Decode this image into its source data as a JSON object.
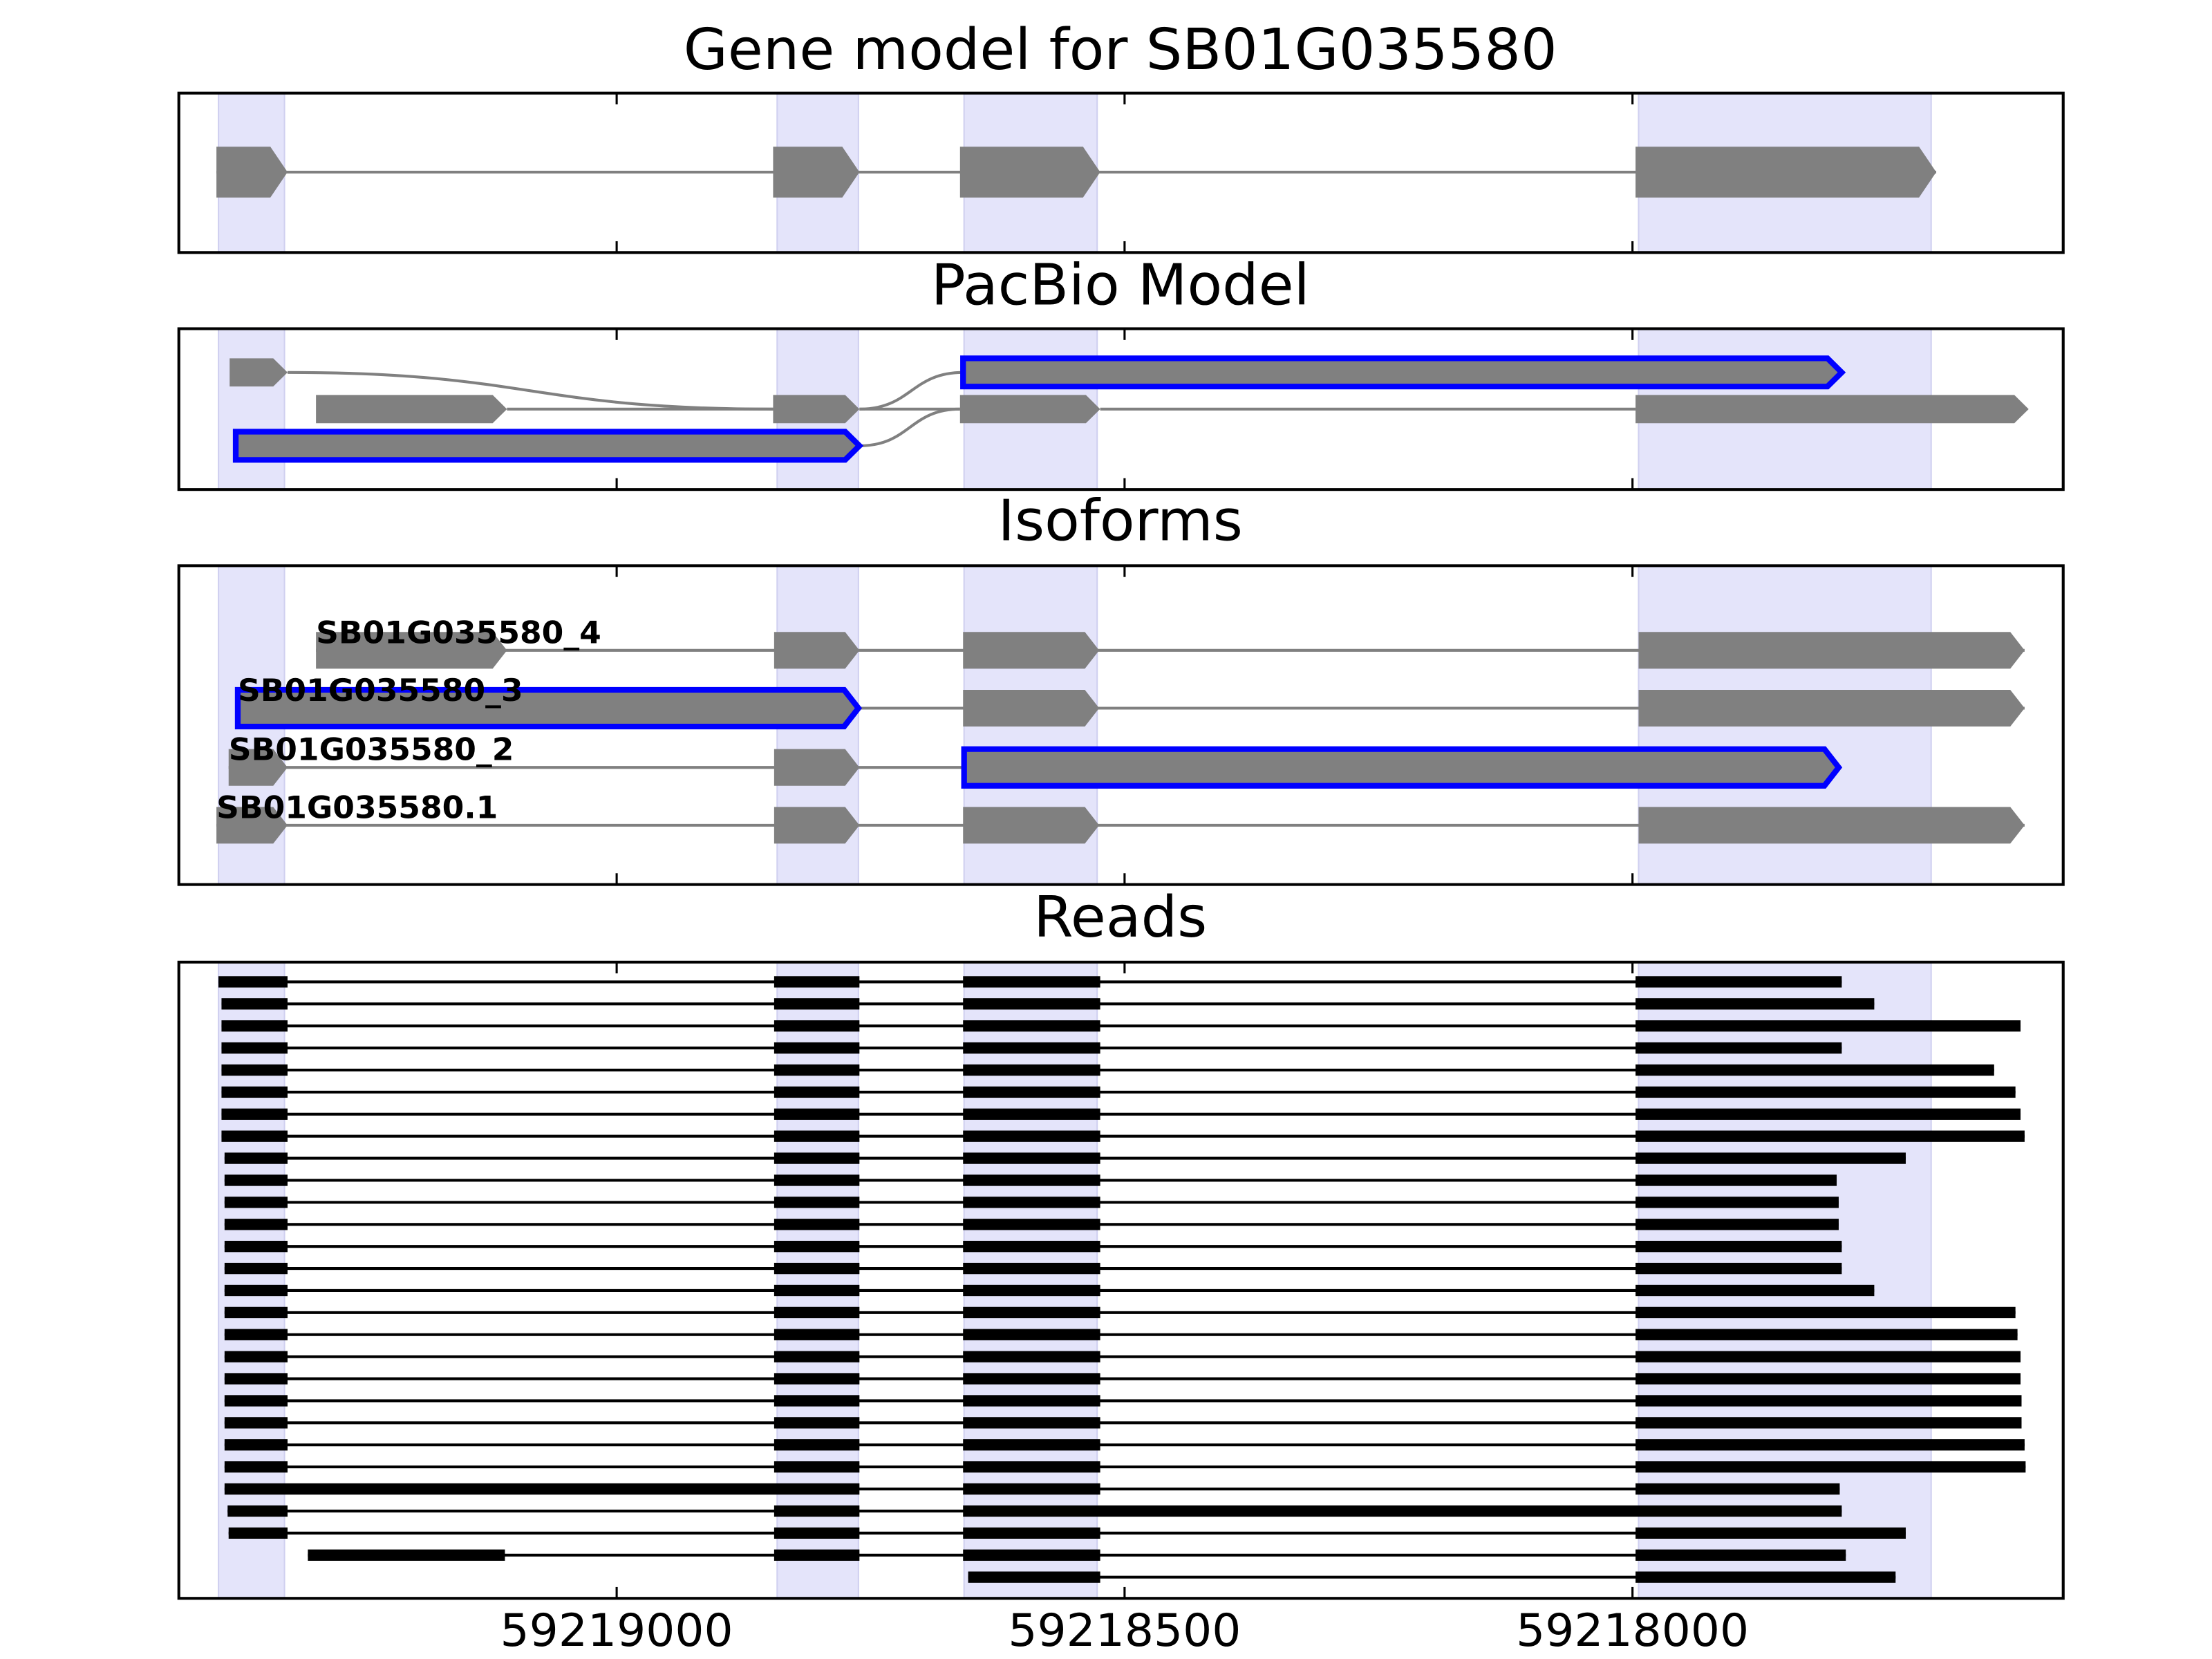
{
  "chart_data": {
    "type": "gene_model",
    "xlim": [
      59219431,
      59217576
    ],
    "xticks": [
      59219000,
      59218500,
      59218000
    ],
    "colors": {
      "exon": "#808080",
      "highlight": "#0000ff",
      "read": "#000000",
      "shade": "#e4e4fa",
      "intron": "#808080"
    },
    "shaded": [
      [
        59219392,
        59219327
      ],
      [
        59218842,
        59218762
      ],
      [
        59218658,
        59218527
      ],
      [
        59217994,
        59217706
      ]
    ],
    "panels": [
      {
        "title": "Gene model for SB01G035580",
        "kind": "gene",
        "exons": [
          [
            59219394,
            59219324
          ],
          [
            59218846,
            59218761
          ],
          [
            59218662,
            59218524
          ],
          [
            59217997,
            59217701
          ]
        ]
      },
      {
        "title": "PacBio Model",
        "kind": "graph",
        "nodes": [
          {
            "row": 0,
            "exon": [
              59219381,
              59219324
            ]
          },
          {
            "row": 0,
            "exon": [
              59218659,
              59217794
            ],
            "highlight": true
          },
          {
            "row": 1,
            "exon": [
              59219296,
              59219108
            ]
          },
          {
            "row": 1,
            "exon": [
              59218846,
              59218761
            ]
          },
          {
            "row": 1,
            "exon": [
              59218662,
              59218524
            ]
          },
          {
            "row": 1,
            "exon": [
              59217997,
              59217610
            ]
          },
          {
            "row": 2,
            "exon": [
              59219375,
              59218761
            ],
            "highlight": true
          }
        ],
        "edges": [
          [
            0,
            3
          ],
          [
            2,
            3
          ],
          [
            3,
            1
          ],
          [
            3,
            4
          ],
          [
            6,
            4
          ],
          [
            4,
            5
          ]
        ]
      },
      {
        "title": "Isoforms",
        "kind": "isoforms",
        "rows": [
          {
            "label": "SB01G035580_4",
            "exons": [
              [
                59219296,
                59219108
              ],
              [
                59218845,
                59218761
              ],
              [
                59218659,
                59218525
              ],
              [
                59217994,
                59217614
              ]
            ]
          },
          {
            "label": "SB01G035580_3",
            "exons": [
              [
                59219373,
                59218762
              ],
              [
                59218659,
                59218525
              ],
              [
                59217994,
                59217614
              ]
            ],
            "highlight": 0
          },
          {
            "label": "SB01G035580_2",
            "exons": [
              [
                59219382,
                59219324
              ],
              [
                59218845,
                59218761
              ],
              [
                59218658,
                59217797
              ]
            ],
            "highlight": 2
          },
          {
            "label": "SB01G035580.1",
            "exons": [
              [
                59219394,
                59219324
              ],
              [
                59218845,
                59218761
              ],
              [
                59218659,
                59218525
              ],
              [
                59217994,
                59217614
              ]
            ]
          }
        ]
      },
      {
        "title": "Reads",
        "kind": "reads",
        "rows": [
          [
            [
              59219392,
              59219324
            ],
            [
              59218845,
              59218761
            ],
            [
              59218659,
              59218524
            ],
            [
              59217997,
              59217794
            ]
          ],
          [
            [
              59219389,
              59219324
            ],
            [
              59218845,
              59218761
            ],
            [
              59218659,
              59218524
            ],
            [
              59217997,
              59217762
            ]
          ],
          [
            [
              59219389,
              59219324
            ],
            [
              59218845,
              59218761
            ],
            [
              59218659,
              59218524
            ],
            [
              59217997,
              59217618
            ]
          ],
          [
            [
              59219389,
              59219324
            ],
            [
              59218845,
              59218761
            ],
            [
              59218659,
              59218524
            ],
            [
              59217997,
              59217794
            ]
          ],
          [
            [
              59219389,
              59219324
            ],
            [
              59218845,
              59218761
            ],
            [
              59218659,
              59218524
            ],
            [
              59217997,
              59217644
            ]
          ],
          [
            [
              59219389,
              59219324
            ],
            [
              59218845,
              59218761
            ],
            [
              59218659,
              59218524
            ],
            [
              59217997,
              59217623
            ]
          ],
          [
            [
              59219389,
              59219324
            ],
            [
              59218845,
              59218761
            ],
            [
              59218659,
              59218524
            ],
            [
              59217997,
              59217618
            ]
          ],
          [
            [
              59219389,
              59219324
            ],
            [
              59218845,
              59218761
            ],
            [
              59218659,
              59218524
            ],
            [
              59217997,
              59217614
            ]
          ],
          [
            [
              59219386,
              59219324
            ],
            [
              59218845,
              59218761
            ],
            [
              59218659,
              59218524
            ],
            [
              59217997,
              59217731
            ]
          ],
          [
            [
              59219386,
              59219324
            ],
            [
              59218845,
              59218761
            ],
            [
              59218659,
              59218524
            ],
            [
              59217997,
              59217799
            ]
          ],
          [
            [
              59219386,
              59219324
            ],
            [
              59218845,
              59218761
            ],
            [
              59218659,
              59218524
            ],
            [
              59217997,
              59217797
            ]
          ],
          [
            [
              59219386,
              59219324
            ],
            [
              59218845,
              59218761
            ],
            [
              59218659,
              59218524
            ],
            [
              59217997,
              59217797
            ]
          ],
          [
            [
              59219386,
              59219324
            ],
            [
              59218845,
              59218761
            ],
            [
              59218659,
              59218524
            ],
            [
              59217997,
              59217794
            ]
          ],
          [
            [
              59219386,
              59219324
            ],
            [
              59218845,
              59218761
            ],
            [
              59218659,
              59218524
            ],
            [
              59217997,
              59217794
            ]
          ],
          [
            [
              59219386,
              59219324
            ],
            [
              59218845,
              59218761
            ],
            [
              59218659,
              59218524
            ],
            [
              59217997,
              59217762
            ]
          ],
          [
            [
              59219386,
              59219324
            ],
            [
              59218845,
              59218761
            ],
            [
              59218659,
              59218524
            ],
            [
              59217997,
              59217623
            ]
          ],
          [
            [
              59219386,
              59219324
            ],
            [
              59218845,
              59218761
            ],
            [
              59218659,
              59218524
            ],
            [
              59217997,
              59217621
            ]
          ],
          [
            [
              59219386,
              59219324
            ],
            [
              59218845,
              59218761
            ],
            [
              59218659,
              59218524
            ],
            [
              59217997,
              59217618
            ]
          ],
          [
            [
              59219386,
              59219324
            ],
            [
              59218845,
              59218761
            ],
            [
              59218659,
              59218524
            ],
            [
              59217997,
              59217618
            ]
          ],
          [
            [
              59219386,
              59219324
            ],
            [
              59218845,
              59218761
            ],
            [
              59218659,
              59218524
            ],
            [
              59217997,
              59217617
            ]
          ],
          [
            [
              59219386,
              59219324
            ],
            [
              59218845,
              59218761
            ],
            [
              59218659,
              59218524
            ],
            [
              59217997,
              59217617
            ]
          ],
          [
            [
              59219386,
              59219324
            ],
            [
              59218845,
              59218761
            ],
            [
              59218659,
              59218524
            ],
            [
              59217997,
              59217614
            ]
          ],
          [
            [
              59219386,
              59219324
            ],
            [
              59218845,
              59218761
            ],
            [
              59218659,
              59218524
            ],
            [
              59217997,
              59217613
            ]
          ],
          [
            [
              59219386,
              59218761
            ],
            [
              59218659,
              59218524
            ],
            [
              59217997,
              59217796
            ]
          ],
          [
            [
              59219383,
              59219324
            ],
            [
              59218845,
              59218761
            ],
            [
              59218659,
              59217794
            ]
          ],
          [
            [
              59219382,
              59219324
            ],
            [
              59218845,
              59218761
            ],
            [
              59218659,
              59218524
            ],
            [
              59217997,
              59217731
            ]
          ],
          [
            [
              59219304,
              59219110
            ],
            [
              59218845,
              59218761
            ],
            [
              59218659,
              59218524
            ],
            [
              59217997,
              59217790
            ]
          ],
          [
            [
              59218654,
              59218524
            ],
            [
              59217997,
              59217741
            ]
          ]
        ]
      }
    ]
  }
}
